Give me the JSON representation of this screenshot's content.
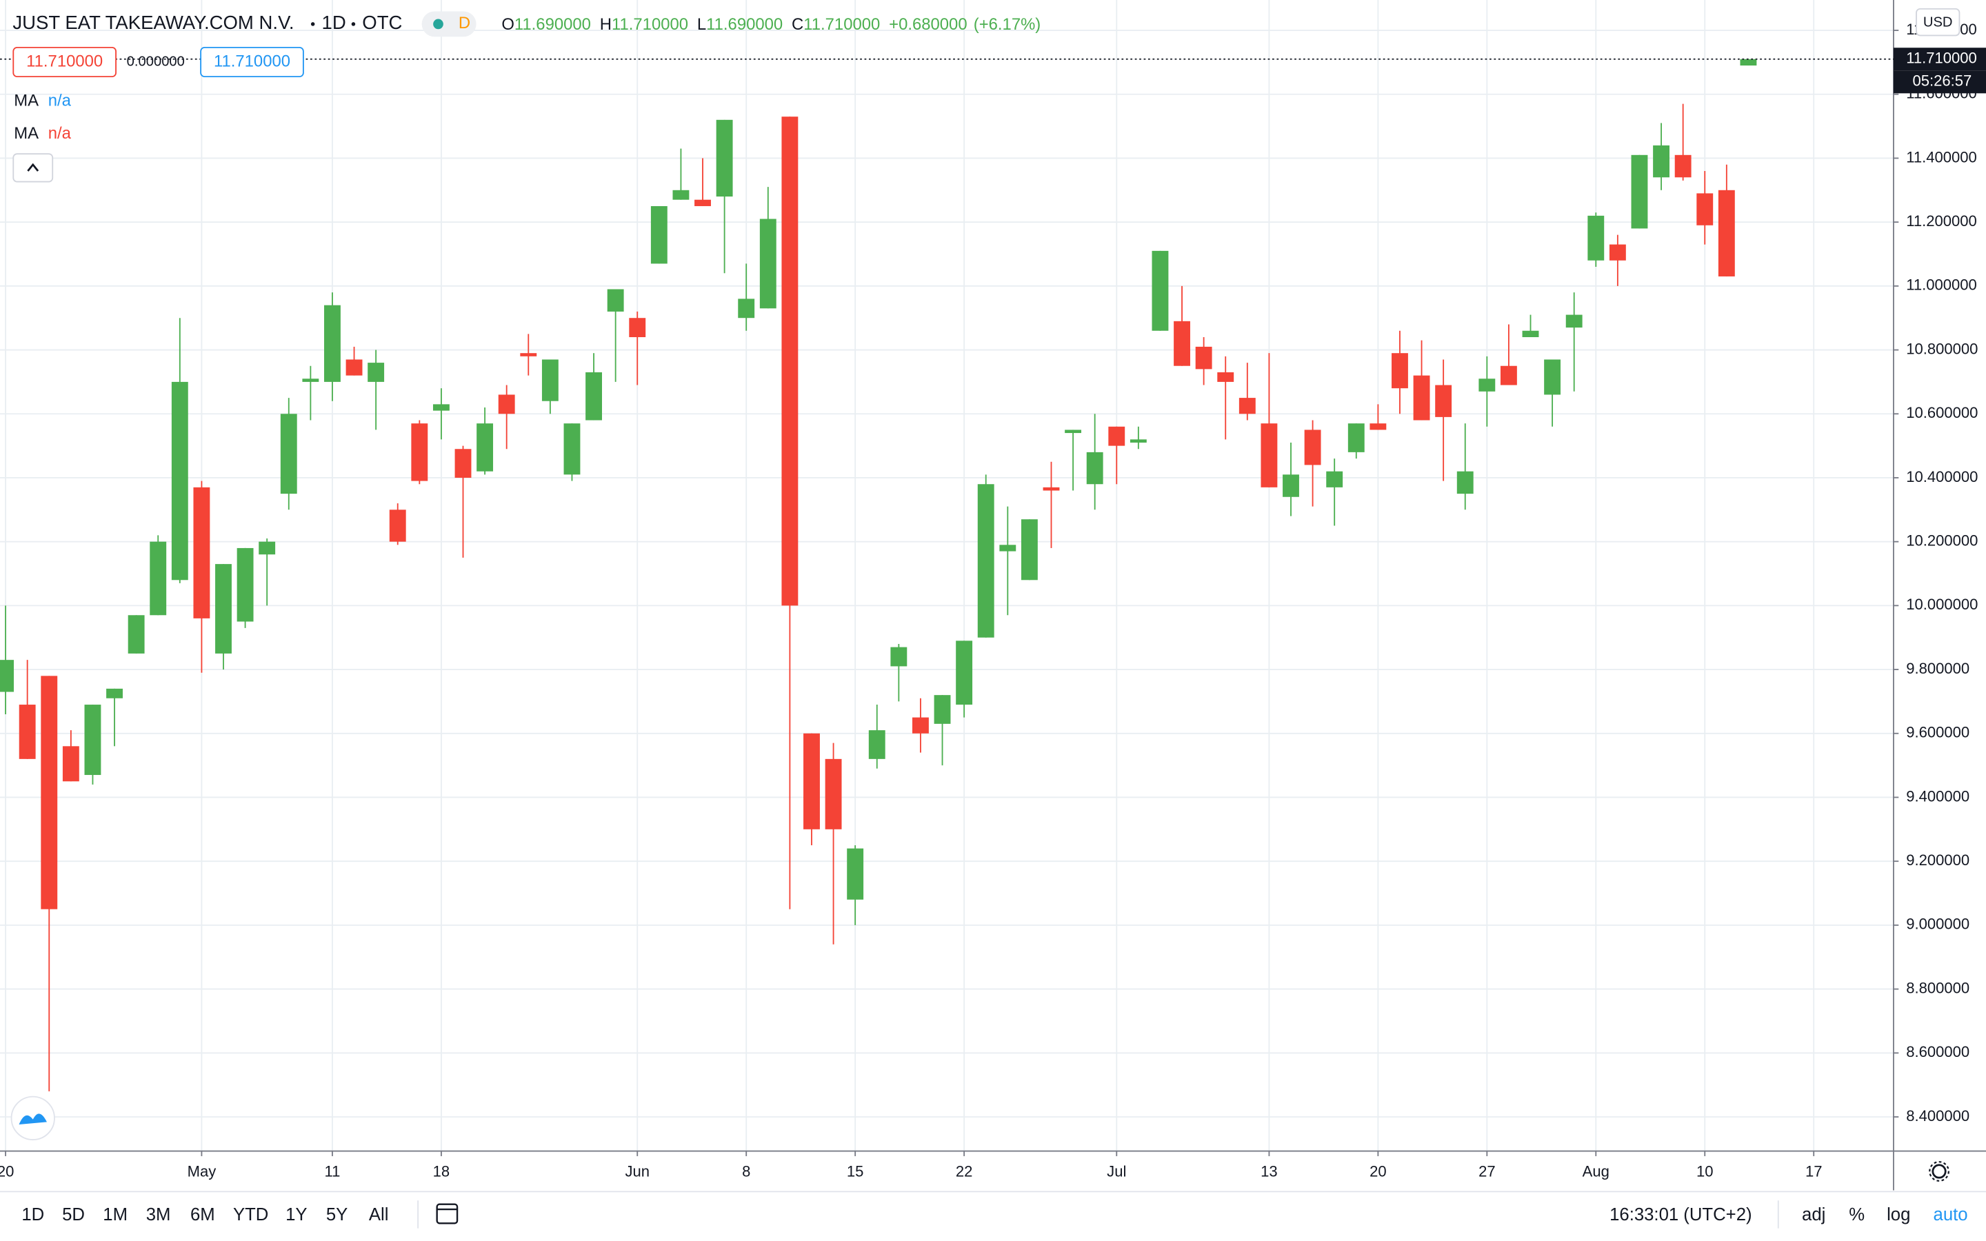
{
  "chart_data": {
    "type": "candlestick",
    "categories": [
      "20",
      null,
      null,
      null,
      null,
      null,
      null,
      null,
      null,
      "May",
      null,
      null,
      null,
      null,
      null,
      "11",
      null,
      null,
      null,
      null,
      "18",
      null,
      null,
      null,
      null,
      null,
      null,
      null,
      null,
      "Jun",
      null,
      null,
      null,
      null,
      "8",
      null,
      null,
      null,
      null,
      "15",
      null,
      null,
      null,
      null,
      "22",
      null,
      null,
      null,
      null,
      null,
      null,
      "Jul",
      null,
      null,
      null,
      null,
      null,
      null,
      "13",
      null,
      null,
      null,
      null,
      "20",
      null,
      null,
      null,
      null,
      "27",
      null,
      null,
      null,
      null,
      "Aug",
      null,
      null,
      null,
      null,
      "10",
      null,
      null,
      null,
      null,
      "17"
    ],
    "open": [
      9.73,
      9.69,
      9.78,
      9.56,
      9.47,
      9.71,
      9.85,
      9.97,
      10.08,
      10.37,
      9.85,
      9.95,
      10.16,
      10.35,
      10.7,
      10.7,
      10.77,
      10.7,
      10.3,
      10.57,
      10.61,
      10.49,
      10.42,
      10.66,
      10.79,
      10.64,
      10.41,
      10.58,
      10.92,
      10.9,
      11.07,
      11.27,
      11.27,
      11.28,
      10.9,
      10.93,
      11.53,
      9.6,
      9.52,
      9.08,
      9.52,
      9.81,
      9.65,
      9.63,
      9.69,
      9.9,
      10.17,
      10.08,
      10.37,
      10.54,
      10.38,
      10.56,
      10.51,
      10.86,
      10.89,
      10.81,
      10.73,
      10.65,
      10.57,
      10.34,
      10.55,
      10.37,
      10.48,
      10.57,
      10.79,
      10.72,
      10.69,
      10.35,
      10.67,
      10.75,
      10.84,
      10.66,
      10.87,
      11.08,
      11.13,
      11.18,
      11.34,
      11.41,
      11.29,
      11.3,
      11.69,
      null,
      null,
      null
    ],
    "high": [
      10.0,
      9.83,
      9.78,
      9.61,
      9.69,
      9.74,
      9.97,
      10.22,
      10.9,
      10.39,
      10.13,
      10.18,
      10.21,
      10.65,
      10.75,
      10.98,
      10.81,
      10.8,
      10.32,
      10.58,
      10.68,
      10.5,
      10.62,
      10.69,
      10.85,
      10.77,
      10.57,
      10.79,
      10.99,
      10.92,
      11.25,
      11.43,
      11.4,
      11.52,
      11.07,
      11.31,
      11.53,
      9.6,
      9.57,
      9.25,
      9.69,
      9.88,
      9.71,
      9.72,
      9.89,
      10.41,
      10.31,
      10.27,
      10.45,
      10.55,
      10.6,
      10.56,
      10.56,
      11.11,
      11.0,
      10.84,
      10.78,
      10.76,
      10.79,
      10.51,
      10.58,
      10.46,
      10.57,
      10.63,
      10.86,
      10.83,
      10.77,
      10.57,
      10.78,
      10.88,
      10.91,
      10.77,
      10.98,
      11.23,
      11.16,
      11.41,
      11.51,
      11.57,
      11.36,
      11.38,
      11.71,
      null,
      null,
      null
    ],
    "low": [
      9.66,
      9.52,
      8.48,
      9.45,
      9.44,
      9.56,
      9.85,
      9.97,
      10.07,
      9.79,
      9.8,
      9.93,
      10.0,
      10.3,
      10.58,
      10.64,
      10.72,
      10.55,
      10.19,
      10.38,
      10.52,
      10.15,
      10.41,
      10.49,
      10.72,
      10.6,
      10.39,
      10.58,
      10.7,
      10.69,
      11.07,
      11.27,
      11.25,
      11.04,
      10.86,
      10.93,
      9.05,
      9.25,
      8.94,
      9.0,
      9.49,
      9.7,
      9.54,
      9.5,
      9.65,
      9.9,
      9.97,
      10.08,
      10.18,
      10.36,
      10.3,
      10.38,
      10.49,
      10.86,
      10.75,
      10.69,
      10.52,
      10.58,
      10.37,
      10.28,
      10.31,
      10.25,
      10.46,
      10.55,
      10.6,
      10.58,
      10.39,
      10.3,
      10.56,
      10.69,
      10.84,
      10.56,
      10.67,
      11.06,
      11.0,
      11.18,
      11.3,
      11.33,
      11.13,
      11.03,
      11.69,
      null,
      null,
      null
    ],
    "close": [
      9.83,
      9.52,
      9.05,
      9.45,
      9.69,
      9.74,
      9.97,
      10.2,
      10.7,
      9.96,
      10.13,
      10.18,
      10.2,
      10.6,
      10.71,
      10.94,
      10.72,
      10.76,
      10.2,
      10.39,
      10.63,
      10.4,
      10.57,
      10.6,
      10.78,
      10.77,
      10.57,
      10.73,
      10.99,
      10.84,
      11.25,
      11.3,
      11.25,
      11.52,
      10.96,
      11.21,
      10.0,
      9.3,
      9.3,
      9.24,
      9.61,
      9.87,
      9.6,
      9.72,
      9.89,
      10.38,
      10.19,
      10.27,
      10.36,
      10.55,
      10.48,
      10.5,
      10.52,
      11.11,
      10.75,
      10.74,
      10.7,
      10.6,
      10.37,
      10.41,
      10.44,
      10.42,
      10.57,
      10.55,
      10.68,
      10.58,
      10.59,
      10.42,
      10.71,
      10.69,
      10.86,
      10.77,
      10.91,
      11.22,
      11.08,
      11.41,
      11.44,
      11.34,
      11.19,
      11.03,
      11.71,
      null,
      null,
      null
    ],
    "up_color": "#4caf50",
    "down_color": "#f44336",
    "ylim": [
      8.293,
      11.895
    ],
    "yticks": [
      {
        "value": 8.4,
        "label": "8.400000"
      },
      {
        "value": 8.6,
        "label": "8.600000"
      },
      {
        "value": 8.8,
        "label": "8.800000"
      },
      {
        "value": 9.0,
        "label": "9.000000"
      },
      {
        "value": 9.2,
        "label": "9.200000"
      },
      {
        "value": 9.4,
        "label": "9.400000"
      },
      {
        "value": 9.6,
        "label": "9.600000"
      },
      {
        "value": 9.8,
        "label": "9.800000"
      },
      {
        "value": 10.0,
        "label": "10.000000"
      },
      {
        "value": 10.2,
        "label": "10.200000"
      },
      {
        "value": 10.4,
        "label": "10.400000"
      },
      {
        "value": 10.6,
        "label": "10.600000"
      },
      {
        "value": 10.8,
        "label": "10.800000"
      },
      {
        "value": 11.0,
        "label": "11.000000"
      },
      {
        "value": 11.2,
        "label": "11.200000"
      },
      {
        "value": 11.4,
        "label": "11.400000"
      },
      {
        "value": 11.6,
        "label": "11.600000"
      },
      {
        "value": 11.8,
        "label": "11.800000"
      }
    ],
    "grid": true,
    "price_line": {
      "value": 11.71,
      "label": "11.710000"
    }
  },
  "ui": {
    "header": {
      "symbol": "JUST EAT TAKEAWAY.COM N.V.",
      "interval": "1D",
      "exchange": "OTC",
      "badge": "D",
      "ohlc": [
        {
          "label": "O",
          "value": "11.690000"
        },
        {
          "label": "H",
          "value": "11.710000"
        },
        {
          "label": "L",
          "value": "11.690000"
        },
        {
          "label": "C",
          "value": "11.710000"
        }
      ],
      "change": "+0.680000",
      "change_percent": "(+6.17%)"
    },
    "indicators": {
      "value_a": "11.710000",
      "value_b": "0.000000",
      "value_c": "11.710000",
      "ma": [
        {
          "name": "MA",
          "value": "n/a"
        },
        {
          "name": "MA",
          "value": "n/a"
        }
      ]
    },
    "price_axis": {
      "currency": "USD",
      "countdown": "05:26:57"
    },
    "toolbar": {
      "ranges": [
        "1D",
        "5D",
        "1M",
        "3M",
        "6M",
        "YTD",
        "1Y",
        "5Y",
        "All"
      ],
      "clock": "16:33:01 (UTC+2)",
      "options": [
        "adj",
        "%",
        "log",
        "auto"
      ]
    }
  }
}
